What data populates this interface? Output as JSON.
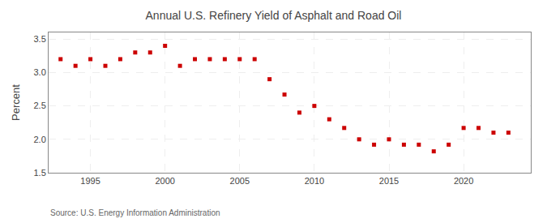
{
  "chart_data": {
    "type": "scatter",
    "title": "Annual U.S. Refinery Yield of Asphalt and Road Oil",
    "ylabel": "Percent",
    "annotations": [
      "Source: U.S. Energy Information Administration"
    ],
    "x": [
      1993,
      1994,
      1995,
      1996,
      1997,
      1998,
      1999,
      2000,
      2001,
      2002,
      2003,
      2004,
      2005,
      2006,
      2007,
      2008,
      2009,
      2010,
      2011,
      2012,
      2013,
      2014,
      2015,
      2016,
      2017,
      2018,
      2019,
      2020,
      2021,
      2022,
      2023
    ],
    "values": [
      3.2,
      3.1,
      3.2,
      3.1,
      3.2,
      3.3,
      3.3,
      3.4,
      3.1,
      3.2,
      3.2,
      3.2,
      3.2,
      3.2,
      2.9,
      2.67,
      2.4,
      2.5,
      2.3,
      2.17,
      2.0,
      1.92,
      2.0,
      1.92,
      1.92,
      1.82,
      1.92,
      2.17,
      2.17,
      2.1,
      2.1
    ],
    "color": "#cc0000",
    "marker": "square",
    "xlim": [
      1992.2,
      2024.5
    ],
    "xticks": [
      1995,
      2000,
      2005,
      2010,
      2015,
      2020
    ],
    "ylim": [
      1.5,
      3.6
    ],
    "yticks": [
      1.5,
      {
        "value": 2,
        "label": "2.0"
      },
      2.5,
      {
        "value": 3,
        "label": "3.0"
      },
      3.5
    ],
    "grid": true
  }
}
